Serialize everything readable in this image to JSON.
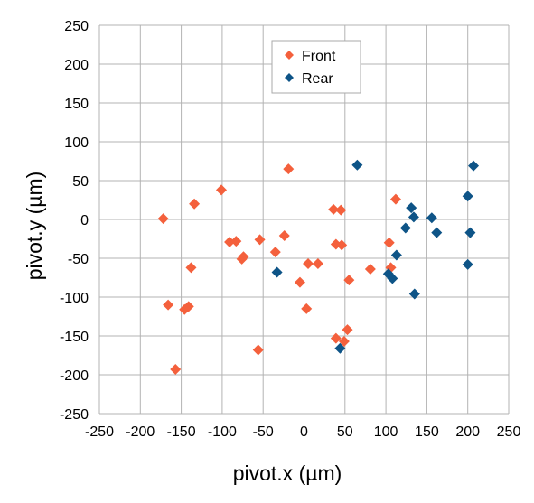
{
  "chart_data": {
    "type": "scatter",
    "xlabel": "pivot.x (µm)",
    "ylabel": "pivot.y  (µm)",
    "xlim": [
      -250,
      250
    ],
    "ylim": [
      -250,
      250
    ],
    "x_ticks": [
      -250,
      -200,
      -150,
      -100,
      -50,
      0,
      50,
      100,
      150,
      200,
      250
    ],
    "y_ticks": [
      -250,
      -200,
      -150,
      -100,
      -50,
      0,
      50,
      100,
      150,
      200,
      250
    ],
    "grid": true,
    "legend_position": "top-center",
    "series": [
      {
        "name": "Front",
        "color": "#f4603c",
        "marker": "diamond",
        "points": [
          [
            -172,
            1
          ],
          [
            -166,
            -110
          ],
          [
            -157,
            -193
          ],
          [
            -146,
            -116
          ],
          [
            -141,
            -112
          ],
          [
            -138,
            -62
          ],
          [
            -134,
            20
          ],
          [
            -101,
            38
          ],
          [
            -91,
            -29
          ],
          [
            -83,
            -28
          ],
          [
            -76,
            -51
          ],
          [
            -74,
            -48
          ],
          [
            -54,
            -26
          ],
          [
            -56,
            -168
          ],
          [
            -35,
            -42
          ],
          [
            -24,
            -21
          ],
          [
            -19,
            65
          ],
          [
            -5,
            -81
          ],
          [
            3,
            -115
          ],
          [
            5,
            -57
          ],
          [
            17,
            -57
          ],
          [
            36,
            13
          ],
          [
            39,
            -32
          ],
          [
            39,
            -153
          ],
          [
            45,
            12
          ],
          [
            46,
            -33
          ],
          [
            49,
            -157
          ],
          [
            53,
            -142
          ],
          [
            55,
            -78
          ],
          [
            81,
            -64
          ],
          [
            104,
            -30
          ],
          [
            106,
            -62
          ],
          [
            112,
            26
          ]
        ]
      },
      {
        "name": "Rear",
        "color": "#0e5487",
        "marker": "diamond",
        "points": [
          [
            -33,
            -68
          ],
          [
            44,
            -166
          ],
          [
            65,
            70
          ],
          [
            103,
            -70
          ],
          [
            108,
            -76
          ],
          [
            113,
            -46
          ],
          [
            124,
            -11
          ],
          [
            131,
            15
          ],
          [
            134,
            3
          ],
          [
            135,
            -96
          ],
          [
            156,
            2
          ],
          [
            162,
            -17
          ],
          [
            200,
            30
          ],
          [
            200,
            -58
          ],
          [
            203,
            -17
          ],
          [
            207,
            69
          ]
        ]
      }
    ]
  }
}
